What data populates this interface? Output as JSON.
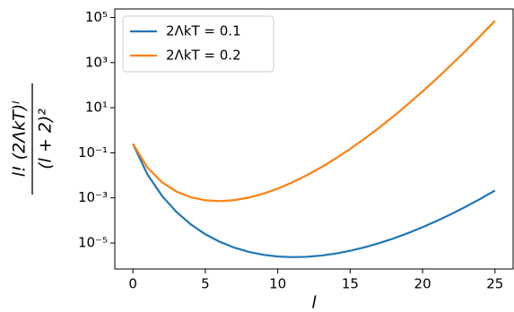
{
  "chart_data": {
    "type": "line",
    "xlabel": "l",
    "ylabel": {
      "numerator": "l! (2ΛkT)ˡ",
      "denominator": "(l + 2)²"
    },
    "x": [
      0,
      1,
      2,
      3,
      4,
      5,
      6,
      7,
      8,
      9,
      10,
      11,
      12,
      13,
      14,
      15,
      16,
      17,
      18,
      19,
      20,
      21,
      22,
      23,
      24,
      25
    ],
    "series": [
      {
        "name": "2ΛkT = 0.1",
        "color": "#1f77b4",
        "values": [
          0.25,
          0.01111,
          0.00125,
          0.00024,
          6.667e-05,
          2.449e-05,
          1.125e-05,
          6.222e-06,
          4.032e-06,
          2.999e-06,
          2.52e-06,
          2.362e-06,
          2.444e-06,
          2.768e-06,
          3.405e-06,
          4.525e-06,
          6.458e-06,
          9.853e-06,
          1.601e-05,
          2.758e-05,
          5.027e-05,
          9.658e-05,
          0.0001951,
          0.0004136,
          0.0009178,
          0.002128
        ]
      },
      {
        "name": "2ΛkT = 0.2",
        "color": "#ff7f0e",
        "values": [
          0.25,
          0.02222,
          0.005,
          0.00192,
          0.0010667,
          0.0007837,
          0.00072,
          0.0007964,
          0.001032,
          0.001536,
          0.00258,
          0.004838,
          0.01001,
          0.02268,
          0.05579,
          0.14828,
          0.42324,
          1.2913,
          4.197,
          14.461,
          52.713,
          202.55,
          818.29,
          3469.5,
          15397,
          71405
        ]
      }
    ],
    "xlim": [
      -1.25,
      26.25
    ],
    "xticks": [
      0,
      5,
      10,
      15,
      20,
      25
    ],
    "ylim": [
      7.06e-07,
      239000.0
    ],
    "yscale": "log",
    "yticks": [
      {
        "value": 1e-05,
        "label": "10⁻⁵"
      },
      {
        "value": 0.001,
        "label": "10⁻³"
      },
      {
        "value": 0.1,
        "label": "10⁻¹"
      },
      {
        "value": 10,
        "label": "10¹"
      },
      {
        "value": 1000,
        "label": "10³"
      },
      {
        "value": 100000,
        "label": "10⁵"
      }
    ],
    "legend": "upper left"
  }
}
